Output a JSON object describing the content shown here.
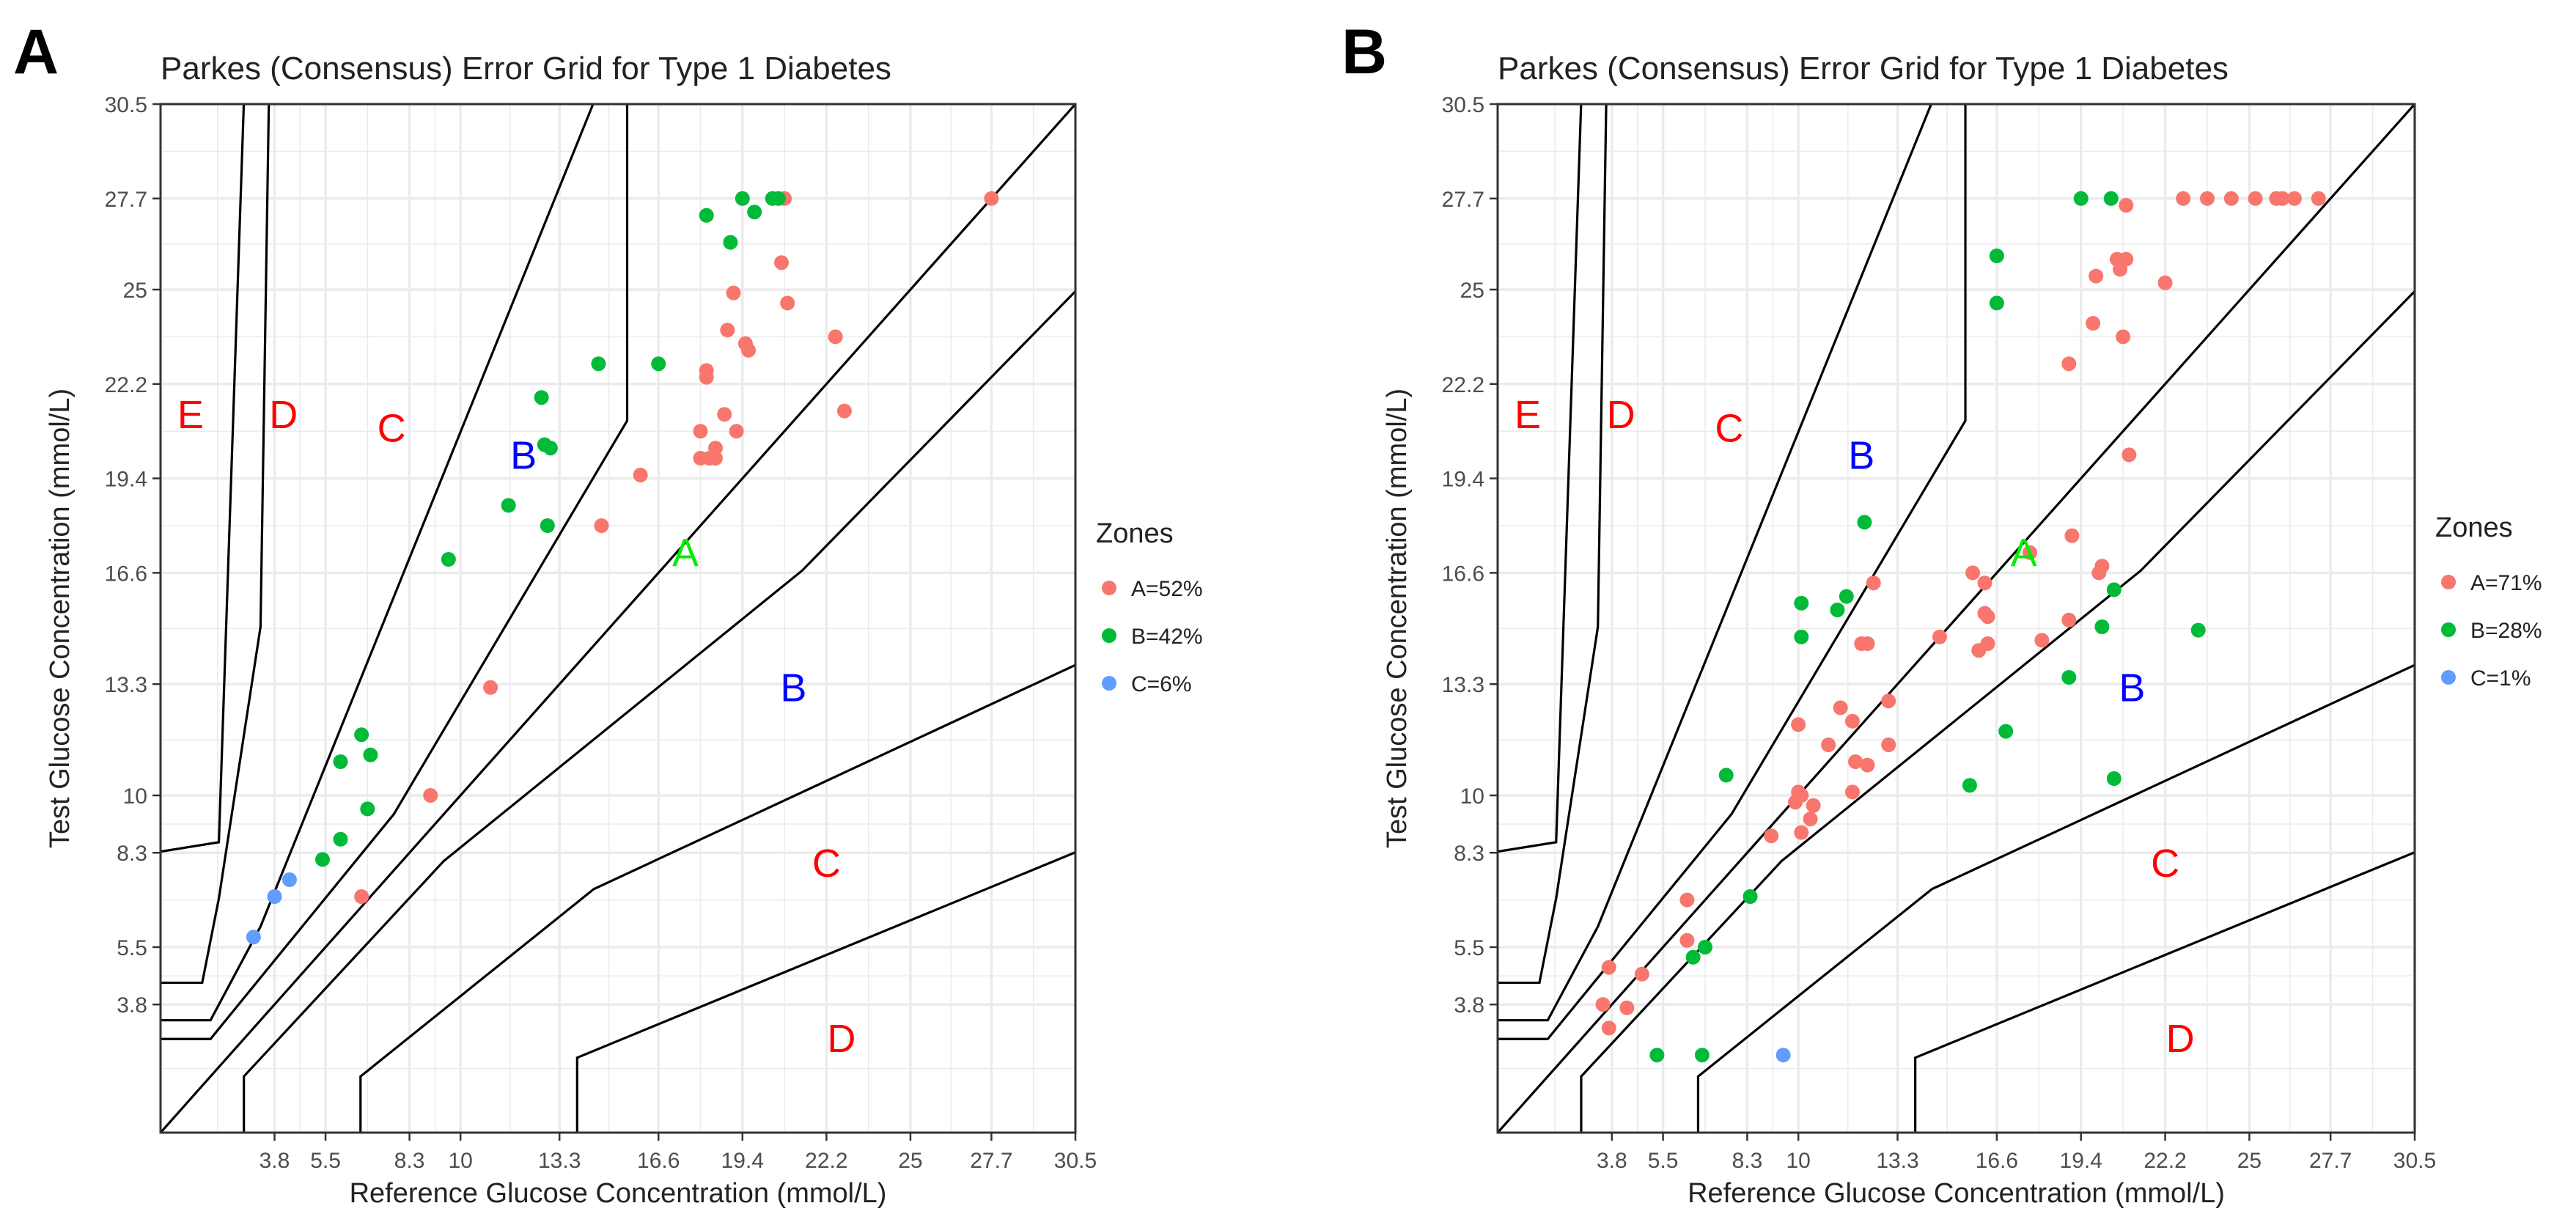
{
  "colors": {
    "zone_a_point": "#F8766D",
    "zone_b_point": "#00BA38",
    "zone_c_point": "#619CFF",
    "zone_label_red": "#FF0000",
    "zone_label_blue": "#0000FF",
    "zone_label_green": "#00EE00",
    "grid": "#EBEBEB",
    "panel_border": "#333333"
  },
  "chart_data": [
    {
      "panel": "A",
      "type": "scatter",
      "title": "Parkes (Consensus) Error Grid for Type  1  Diabetes",
      "xlabel": "Reference Glucose Concentration (mmol/L)",
      "ylabel": "Test Glucose Concentration (mmol/L)",
      "xlim": [
        0,
        30.5
      ],
      "ylim": [
        0,
        30.5
      ],
      "ticks": [
        "3.8",
        "5.5",
        "8.3",
        "10",
        "13.3",
        "16.6",
        "19.4",
        "22.2",
        "25",
        "27.7",
        "30.5"
      ],
      "tick_values": [
        3.8,
        5.5,
        8.3,
        10,
        13.3,
        16.6,
        19.4,
        22.2,
        25,
        27.7,
        30.5
      ],
      "grid": true,
      "zone_labels": [
        {
          "text": "E",
          "x": 1.0,
          "y": 21.2,
          "color": "red"
        },
        {
          "text": "D",
          "x": 4.1,
          "y": 21.2,
          "color": "red"
        },
        {
          "text": "C",
          "x": 7.7,
          "y": 20.8,
          "color": "red"
        },
        {
          "text": "B",
          "x": 12.1,
          "y": 20.0,
          "color": "blue"
        },
        {
          "text": "A",
          "x": 17.5,
          "y": 17.1,
          "color": "green"
        },
        {
          "text": "B",
          "x": 21.1,
          "y": 13.1,
          "color": "blue"
        },
        {
          "text": "C",
          "x": 22.2,
          "y": 7.9,
          "color": "red"
        },
        {
          "text": "D",
          "x": 22.7,
          "y": 2.7,
          "color": "red"
        }
      ],
      "legend": {
        "title": "Zones",
        "position": "right",
        "entries": [
          "A=52%",
          "B=42%",
          "C=6%"
        ]
      },
      "series": [
        {
          "name": "A=52%",
          "zone": "A",
          "points": [
            [
              27.7,
              27.7
            ],
            [
              20.8,
              27.7
            ],
            [
              20.7,
              25.8
            ],
            [
              20.9,
              24.6
            ],
            [
              22.5,
              23.6
            ],
            [
              18.9,
              23.8
            ],
            [
              19.5,
              23.4
            ],
            [
              19.6,
              23.2
            ],
            [
              18.2,
              22.6
            ],
            [
              18.2,
              22.4
            ],
            [
              19.1,
              24.9
            ],
            [
              18.5,
              20.3
            ],
            [
              18.8,
              21.3
            ],
            [
              19.2,
              20.8
            ],
            [
              22.8,
              21.4
            ],
            [
              18.0,
              20.8
            ],
            [
              18.0,
              20.0
            ],
            [
              18.3,
              20.0
            ],
            [
              18.5,
              20.0
            ],
            [
              16.0,
              19.5
            ],
            [
              14.7,
              18.0
            ],
            [
              11.0,
              13.2
            ],
            [
              9.0,
              10.0
            ],
            [
              6.7,
              7.0
            ]
          ]
        },
        {
          "name": "B=42%",
          "zone": "B",
          "points": [
            [
              19.4,
              27.7
            ],
            [
              20.4,
              27.7
            ],
            [
              20.6,
              27.7
            ],
            [
              18.2,
              27.2
            ],
            [
              19.8,
              27.3
            ],
            [
              19.0,
              26.4
            ],
            [
              14.6,
              22.8
            ],
            [
              16.6,
              22.8
            ],
            [
              12.7,
              21.8
            ],
            [
              12.8,
              20.4
            ],
            [
              13.0,
              20.3
            ],
            [
              11.6,
              18.6
            ],
            [
              12.9,
              18.0
            ],
            [
              9.6,
              17.0
            ],
            [
              6.7,
              11.8
            ],
            [
              6.0,
              11.0
            ],
            [
              7.0,
              11.2
            ],
            [
              6.9,
              9.6
            ],
            [
              6.0,
              8.7
            ],
            [
              5.4,
              8.1
            ]
          ]
        },
        {
          "name": "C=6%",
          "zone": "C",
          "points": [
            [
              4.3,
              7.5
            ],
            [
              3.8,
              7.0
            ],
            [
              3.1,
              5.8
            ]
          ]
        }
      ]
    },
    {
      "panel": "B",
      "type": "scatter",
      "title": "Parkes (Consensus) Error Grid for Type  1  Diabetes",
      "xlabel": "Reference Glucose Concentration (mmol/L)",
      "ylabel": "Test Glucose Concentration (mmol/L)",
      "xlim": [
        0,
        30.5
      ],
      "ylim": [
        0,
        30.5
      ],
      "ticks": [
        "3.8",
        "5.5",
        "8.3",
        "10",
        "13.3",
        "16.6",
        "19.4",
        "22.2",
        "25",
        "27.7",
        "30.5"
      ],
      "tick_values": [
        3.8,
        5.5,
        8.3,
        10,
        13.3,
        16.6,
        19.4,
        22.2,
        25,
        27.7,
        30.5
      ],
      "grid": true,
      "zone_labels": [
        {
          "text": "E",
          "x": 1.0,
          "y": 21.2,
          "color": "red"
        },
        {
          "text": "D",
          "x": 4.1,
          "y": 21.2,
          "color": "red"
        },
        {
          "text": "C",
          "x": 7.7,
          "y": 20.8,
          "color": "red"
        },
        {
          "text": "B",
          "x": 12.1,
          "y": 20.0,
          "color": "blue"
        },
        {
          "text": "A",
          "x": 17.5,
          "y": 17.1,
          "color": "green"
        },
        {
          "text": "B",
          "x": 21.1,
          "y": 13.1,
          "color": "blue"
        },
        {
          "text": "C",
          "x": 22.2,
          "y": 7.9,
          "color": "red"
        },
        {
          "text": "D",
          "x": 22.7,
          "y": 2.7,
          "color": "red"
        }
      ],
      "legend": {
        "title": "Zones",
        "position": "right",
        "entries": [
          "A=71%",
          "B=28%",
          "C=1%"
        ]
      },
      "series": [
        {
          "name": "A=71%",
          "zone": "A",
          "points": [
            [
              22.8,
              27.7
            ],
            [
              23.6,
              27.7
            ],
            [
              24.4,
              27.7
            ],
            [
              25.2,
              27.7
            ],
            [
              25.9,
              27.7
            ],
            [
              26.1,
              27.7
            ],
            [
              26.5,
              27.7
            ],
            [
              27.3,
              27.7
            ],
            [
              20.9,
              27.5
            ],
            [
              20.6,
              25.9
            ],
            [
              20.9,
              25.9
            ],
            [
              20.7,
              25.6
            ],
            [
              19.9,
              25.4
            ],
            [
              22.2,
              25.2
            ],
            [
              19.8,
              24.0
            ],
            [
              20.8,
              23.6
            ],
            [
              19.0,
              22.8
            ],
            [
              21.0,
              20.1
            ],
            [
              19.1,
              17.7
            ],
            [
              17.7,
              17.2
            ],
            [
              20.1,
              16.8
            ],
            [
              20.0,
              16.6
            ],
            [
              15.8,
              16.6
            ],
            [
              16.2,
              16.3
            ],
            [
              12.5,
              16.3
            ],
            [
              16.2,
              15.4
            ],
            [
              16.3,
              15.3
            ],
            [
              14.7,
              14.7
            ],
            [
              18.1,
              14.6
            ],
            [
              12.1,
              14.5
            ],
            [
              12.3,
              14.5
            ],
            [
              16.3,
              14.5
            ],
            [
              16.0,
              14.3
            ],
            [
              19.0,
              15.2
            ],
            [
              13.0,
              12.8
            ],
            [
              11.4,
              12.6
            ],
            [
              11.8,
              12.2
            ],
            [
              10.0,
              12.1
            ],
            [
              11.0,
              11.5
            ],
            [
              13.0,
              11.5
            ],
            [
              11.9,
              11.0
            ],
            [
              12.3,
              10.9
            ],
            [
              11.8,
              10.1
            ],
            [
              10.0,
              10.1
            ],
            [
              10.1,
              10.0
            ],
            [
              9.9,
              9.8
            ],
            [
              10.5,
              9.7
            ],
            [
              10.4,
              9.3
            ],
            [
              10.1,
              8.9
            ],
            [
              9.1,
              8.8
            ],
            [
              6.3,
              6.9
            ],
            [
              6.3,
              5.7
            ],
            [
              3.7,
              4.9
            ],
            [
              4.8,
              4.7
            ],
            [
              3.5,
              3.8
            ],
            [
              4.3,
              3.7
            ],
            [
              3.7,
              3.1
            ]
          ]
        },
        {
          "name": "B=28%",
          "zone": "B",
          "points": [
            [
              19.4,
              27.7
            ],
            [
              20.4,
              27.7
            ],
            [
              16.6,
              26.0
            ],
            [
              16.6,
              24.6
            ],
            [
              12.2,
              18.1
            ],
            [
              11.6,
              15.9
            ],
            [
              10.1,
              15.7
            ],
            [
              11.3,
              15.5
            ],
            [
              20.5,
              16.1
            ],
            [
              10.1,
              14.7
            ],
            [
              20.1,
              15.0
            ],
            [
              23.3,
              14.9
            ],
            [
              19.0,
              13.5
            ],
            [
              16.9,
              11.9
            ],
            [
              7.6,
              10.6
            ],
            [
              15.7,
              10.3
            ],
            [
              20.5,
              10.5
            ],
            [
              8.4,
              7.0
            ],
            [
              6.9,
              5.5
            ],
            [
              6.5,
              5.2
            ],
            [
              5.3,
              2.3
            ],
            [
              6.8,
              2.3
            ]
          ]
        },
        {
          "name": "C=1%",
          "zone": "C",
          "points": [
            [
              9.5,
              2.3
            ]
          ]
        }
      ]
    }
  ]
}
